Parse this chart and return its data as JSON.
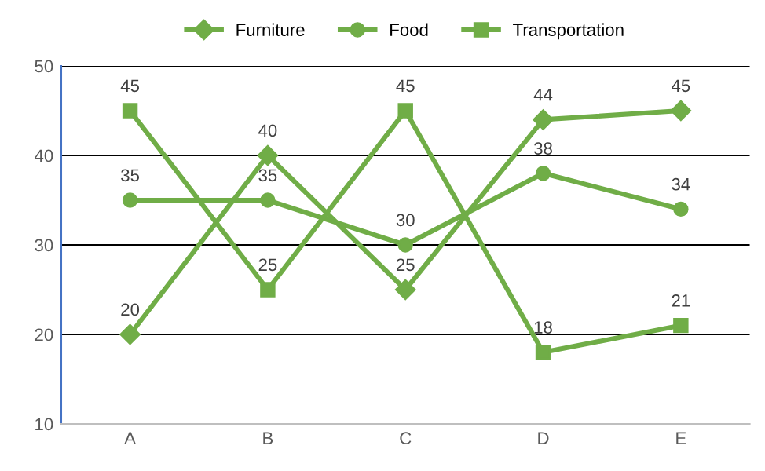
{
  "chart_data": {
    "type": "line",
    "categories": [
      "A",
      "B",
      "C",
      "D",
      "E"
    ],
    "series": [
      {
        "name": "Furniture",
        "color": "#70ad47",
        "marker": "diamond",
        "values": [
          20,
          40,
          25,
          44,
          45
        ]
      },
      {
        "name": "Food",
        "color": "#70ad47",
        "marker": "circle",
        "values": [
          35,
          35,
          30,
          38,
          34
        ]
      },
      {
        "name": "Transportation",
        "color": "#70ad47",
        "marker": "square",
        "values": [
          45,
          25,
          45,
          18,
          21
        ]
      }
    ],
    "ylim": [
      10,
      50
    ],
    "yticks": [
      10,
      20,
      30,
      40,
      50
    ],
    "grid": "y",
    "legend": "top",
    "data_labels": true,
    "line_style": "solid"
  }
}
